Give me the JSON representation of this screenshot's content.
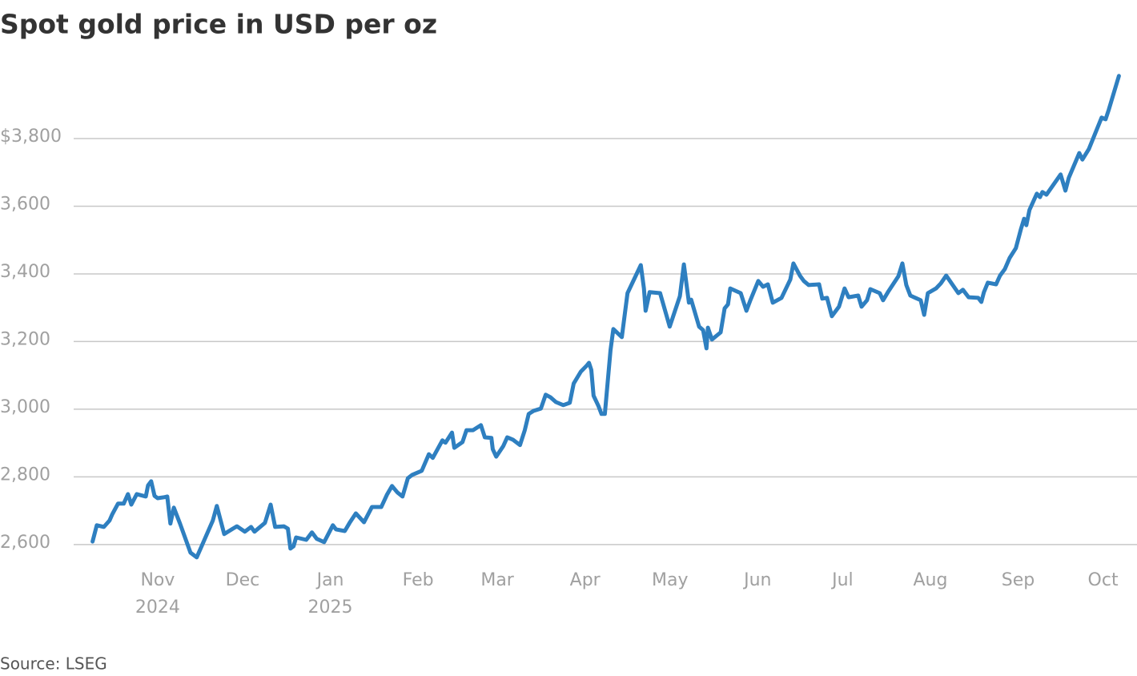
{
  "chart_data": {
    "type": "line",
    "title": "Spot gold price in USD per oz",
    "source": "Source: LSEG",
    "color": "#2e7fc0",
    "grid": true,
    "xlim": [
      -3,
      369
    ],
    "ylim": [
      2550,
      4000
    ],
    "yticks": [
      {
        "value": 2600,
        "label": "2,600"
      },
      {
        "value": 2800,
        "label": "2,800"
      },
      {
        "value": 3000,
        "label": "3,000"
      },
      {
        "value": 3200,
        "label": "3,200"
      },
      {
        "value": 3400,
        "label": "3,400"
      },
      {
        "value": 3600,
        "label": "3,600"
      },
      {
        "value": 3800,
        "label": "$3,800"
      }
    ],
    "xticks": [
      {
        "value": 23,
        "label": "Nov",
        "sublabel": "2024"
      },
      {
        "value": 53,
        "label": "Dec"
      },
      {
        "value": 84,
        "label": "Jan",
        "sublabel": "2025"
      },
      {
        "value": 115,
        "label": "Feb"
      },
      {
        "value": 143,
        "label": "Mar"
      },
      {
        "value": 174,
        "label": "Apr"
      },
      {
        "value": 204,
        "label": "May"
      },
      {
        "value": 235,
        "label": "Jun"
      },
      {
        "value": 265,
        "label": "Jul"
      },
      {
        "value": 296,
        "label": "Aug"
      },
      {
        "value": 327,
        "label": "Sep"
      },
      {
        "value": 357,
        "label": "Oct"
      }
    ],
    "x": [
      0,
      1.5,
      4,
      6,
      7,
      9,
      11,
      12.5,
      13.7,
      15.6,
      18.8,
      19.6,
      20.7,
      21.9,
      23,
      25.5,
      26.4,
      27.5,
      28.7,
      30.9,
      34.6,
      36.8,
      42.5,
      43.9,
      46.5,
      49.6,
      51,
      53.8,
      56,
      57.2,
      60.9,
      62.9,
      64.5,
      67.6,
      69,
      69.9,
      71,
      71.9,
      75.5,
      77.5,
      79.2,
      81.8,
      84.9,
      86,
      89.1,
      90.8,
      93,
      95.9,
      98.7,
      102,
      104,
      105.8,
      107.7,
      109.5,
      111.4,
      112.9,
      116.3,
      118.8,
      120.2,
      123.6,
      124.7,
      127,
      127.8,
      130.7,
      132.1,
      134.4,
      137.2,
      138.6,
      140.9,
      141.4,
      142.6,
      145.1,
      146.5,
      148.5,
      151,
      152.7,
      154.1,
      155.8,
      158.4,
      160.1,
      161.8,
      163.7,
      166.3,
      168.6,
      170,
      172.5,
      174.5,
      175.4,
      176.2,
      177,
      178.7,
      179.8,
      181,
      183,
      184,
      187,
      189,
      193.7,
      194.8,
      195.4,
      196.8,
      200.5,
      202.6,
      203.9,
      207.5,
      208.9,
      210.7,
      211.5,
      214.3,
      215.7,
      216.9,
      217.4,
      218.8,
      221.9,
      223.3,
      224.5,
      225.3,
      229,
      231,
      232.3,
      235.2,
      236.9,
      238.6,
      240.3,
      243.4,
      246.5,
      247.6,
      249.9,
      251.3,
      253,
      256.7,
      257.8,
      259.5,
      261.2,
      263.7,
      265.7,
      267.1,
      270.5,
      271.7,
      273.6,
      274.8,
      278.1,
      279.3,
      281,
      284.7,
      286.1,
      287.5,
      288.9,
      292.6,
      293.8,
      295.1,
      298,
      299.7,
      301.6,
      305.9,
      307.5,
      309.5,
      312.9,
      314,
      314.9,
      316.3,
      319.2,
      320.6,
      322.3,
      324,
      326.2,
      328,
      329.1,
      329.9,
      331,
      333.6,
      334.7,
      335.6,
      337,
      342,
      343.7,
      344.9,
      348.6,
      349.7,
      352,
      356.5,
      357.9,
      359,
      362.6
    ],
    "values": [
      2609,
      2657,
      2652,
      2671,
      2690,
      2721,
      2721,
      2749,
      2718,
      2749,
      2742,
      2775,
      2787,
      2744,
      2737,
      2740,
      2742,
      2662,
      2709,
      2662,
      2576,
      2562,
      2671,
      2714,
      2631,
      2647,
      2654,
      2638,
      2652,
      2638,
      2664,
      2718,
      2652,
      2654,
      2647,
      2588,
      2595,
      2621,
      2614,
      2636,
      2617,
      2607,
      2657,
      2645,
      2640,
      2664,
      2692,
      2666,
      2711,
      2711,
      2747,
      2773,
      2754,
      2742,
      2796,
      2806,
      2818,
      2867,
      2856,
      2908,
      2901,
      2931,
      2886,
      2903,
      2938,
      2938,
      2953,
      2917,
      2915,
      2882,
      2860,
      2891,
      2917,
      2910,
      2894,
      2938,
      2986,
      2995,
      3002,
      3043,
      3035,
      3021,
      3012,
      3019,
      3076,
      3111,
      3128,
      3137,
      3116,
      3040,
      3010,
      2986,
      2986,
      3175,
      3237,
      3213,
      3343,
      3426,
      3357,
      3291,
      3346,
      3343,
      3282,
      3244,
      3334,
      3428,
      3315,
      3324,
      3244,
      3234,
      3180,
      3241,
      3206,
      3227,
      3298,
      3310,
      3357,
      3343,
      3291,
      3320,
      3379,
      3362,
      3369,
      3315,
      3329,
      3383,
      3431,
      3395,
      3379,
      3367,
      3369,
      3327,
      3329,
      3275,
      3303,
      3357,
      3331,
      3336,
      3303,
      3322,
      3355,
      3343,
      3322,
      3346,
      3393,
      3431,
      3367,
      3336,
      3322,
      3279,
      3343,
      3357,
      3372,
      3395,
      3343,
      3353,
      3331,
      3329,
      3317,
      3346,
      3374,
      3369,
      3395,
      3414,
      3447,
      3476,
      3533,
      3563,
      3544,
      3589,
      3637,
      3627,
      3642,
      3634,
      3694,
      3646,
      3684,
      3757,
      3738,
      3769,
      3862,
      3857,
      3885,
      3985
    ]
  }
}
